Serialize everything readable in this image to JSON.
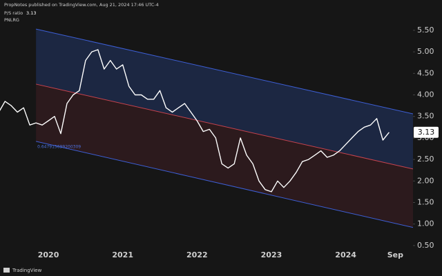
{
  "header": {
    "publisher": "PropNotes published on TradingView.com, Aug 21, 2024 17:46 UTC-4",
    "symbol": "PNLRG"
  },
  "footer": {
    "brand": "TradingView"
  },
  "chart_data": {
    "type": "line",
    "categories": [
      null,
      null,
      null,
      null,
      null,
      null,
      null,
      null,
      "2020",
      null,
      null,
      null,
      null,
      null,
      null,
      null,
      null,
      null,
      null,
      null,
      "2021",
      null,
      null,
      null,
      null,
      null,
      null,
      null,
      null,
      null,
      null,
      null,
      "2022",
      null,
      null,
      null,
      null,
      null,
      null,
      null,
      null,
      null,
      null,
      null,
      "2023",
      null,
      null,
      null,
      null,
      null,
      null,
      null,
      null,
      null,
      null,
      null,
      "2024",
      null,
      null,
      null,
      null,
      null,
      null,
      null,
      "Sep"
    ],
    "series": [
      {
        "name": "P/S ratio",
        "color": "#ffffff",
        "values": [
          3.6,
          3.85,
          3.75,
          3.6,
          3.7,
          3.3,
          3.35,
          3.3,
          3.4,
          3.5,
          3.1,
          3.8,
          4.0,
          4.1,
          4.8,
          5.0,
          5.05,
          4.6,
          4.8,
          4.6,
          4.7,
          4.2,
          4.0,
          4.0,
          3.9,
          3.9,
          4.1,
          3.7,
          3.6,
          3.7,
          3.8,
          3.6,
          3.4,
          3.15,
          3.2,
          3.0,
          2.4,
          2.3,
          2.4,
          3.0,
          2.6,
          2.4,
          2.0,
          1.8,
          1.75,
          2.0,
          1.85,
          2.0,
          2.2,
          2.45,
          2.5,
          2.6,
          2.7,
          2.55,
          2.6,
          2.7,
          2.85,
          3.0,
          3.15,
          3.25,
          3.3,
          3.45,
          2.95,
          3.13,
          null
        ]
      }
    ],
    "channel": {
      "label": "0.647915699200309",
      "start": 6,
      "upper": [
        5.53,
        3.56
      ],
      "middle": [
        4.25,
        2.28
      ],
      "lower": [
        2.92,
        0.92
      ],
      "upper_color": "#3d5fd6",
      "middle_color": "#c7434e",
      "lower_color": "#3d5fd6"
    },
    "ylim": [
      0.37,
      5.98
    ],
    "yticks": [
      {
        "value": 0.5,
        "label": "0.50"
      },
      {
        "value": 1,
        "label": "1.00"
      },
      {
        "value": 1.5,
        "label": "1.50"
      },
      {
        "value": 2,
        "label": "2.00"
      },
      {
        "value": 2.5,
        "label": "2.50"
      },
      {
        "value": 3,
        "label": "3.00"
      },
      {
        "value": 3.5,
        "label": "3.50"
      },
      {
        "value": 4,
        "label": "4.00"
      },
      {
        "value": 4.5,
        "label": "4.50"
      },
      {
        "value": 5,
        "label": "5.00"
      },
      {
        "value": 5.5,
        "label": "5.50"
      }
    ]
  }
}
